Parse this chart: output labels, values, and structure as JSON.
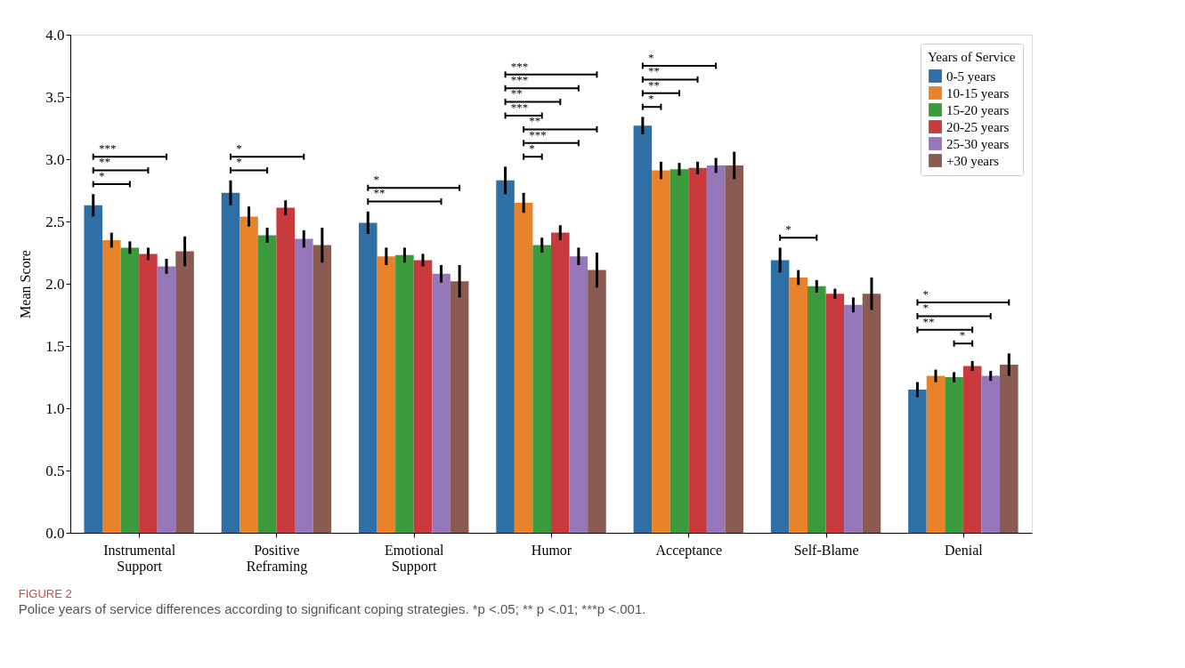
{
  "chart_data": {
    "type": "bar",
    "xlabel": null,
    "ylabel": "Mean Score",
    "legend_title": "Years of Service",
    "legend": "top right",
    "grid": false,
    "categories": [
      "Instrumental Support",
      "Positive Reframing",
      "Emotional Support",
      "Humor",
      "Acceptance",
      "Self-Blame",
      "Denial"
    ],
    "ylim": [
      0,
      4.0
    ],
    "yticks": [
      {
        "value": 0,
        "label": "0.0"
      },
      {
        "value": 0.5,
        "label": "0.5"
      },
      {
        "value": 1,
        "label": "1.0"
      },
      {
        "value": 1.5,
        "label": "1.5"
      },
      {
        "value": 2,
        "label": "2.0"
      },
      {
        "value": 2.5,
        "label": "2.5"
      },
      {
        "value": 3,
        "label": "3.0"
      },
      {
        "value": 3.5,
        "label": "3.5"
      },
      {
        "value": 4,
        "label": "4.0"
      }
    ],
    "series": [
      {
        "name": "0-5 years",
        "color": "#2e6fa6",
        "values": [
          2.63,
          2.73,
          2.49,
          2.83,
          3.27,
          2.19,
          1.15
        ],
        "errors": [
          0.09,
          0.1,
          0.09,
          0.11,
          0.07,
          0.1,
          0.06
        ]
      },
      {
        "name": "10-15 years",
        "color": "#e8832b",
        "values": [
          2.35,
          2.54,
          2.22,
          2.65,
          2.91,
          2.05,
          1.26
        ],
        "errors": [
          0.06,
          0.08,
          0.07,
          0.08,
          0.07,
          0.06,
          0.05
        ]
      },
      {
        "name": "15-20 years",
        "color": "#3a9a3c",
        "values": [
          2.29,
          2.39,
          2.23,
          2.31,
          2.92,
          1.98,
          1.25
        ],
        "errors": [
          0.05,
          0.06,
          0.06,
          0.06,
          0.05,
          0.05,
          0.04
        ]
      },
      {
        "name": "20-25 years",
        "color": "#c93a3c",
        "values": [
          2.24,
          2.61,
          2.19,
          2.41,
          2.93,
          1.92,
          1.34
        ],
        "errors": [
          0.05,
          0.06,
          0.05,
          0.06,
          0.05,
          0.04,
          0.04
        ]
      },
      {
        "name": "25-30 years",
        "color": "#9677b9",
        "values": [
          2.14,
          2.36,
          2.08,
          2.22,
          2.95,
          1.83,
          1.26
        ],
        "errors": [
          0.06,
          0.07,
          0.07,
          0.07,
          0.06,
          0.06,
          0.04
        ]
      },
      {
        "name": "+30 years",
        "color": "#8b5b52",
        "values": [
          2.26,
          2.31,
          2.02,
          2.11,
          2.95,
          1.92,
          1.35
        ],
        "errors": [
          0.12,
          0.14,
          0.13,
          0.14,
          0.11,
          0.13,
          0.09
        ]
      }
    ],
    "annotations": [
      "FIGURE 2",
      "Police years of service differences according to significant coping strategies. *p <.05; ** p <.01; ***p <.001.",
      "***",
      "**",
      "*",
      "*",
      "*",
      "*",
      "**",
      "***",
      "***",
      "**",
      "***",
      "**",
      "***",
      "*",
      "*",
      "**",
      "**",
      "*",
      "*",
      "*",
      "*",
      "**",
      "*"
    ]
  }
}
